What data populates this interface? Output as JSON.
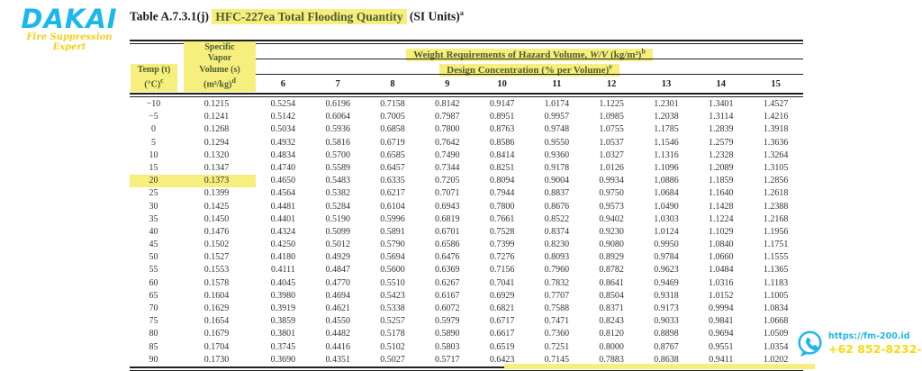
{
  "logo": {
    "name": "DAKAI",
    "tagline": "Fire Suppression Expert"
  },
  "title": {
    "label": "Table A.7.3.1(j)",
    "highlighted": "HFC-227ea Total Flooding Quantity",
    "units": "(SI Units)",
    "footnote": "a"
  },
  "contact": {
    "icon": "whatsapp-phone-icon",
    "url": "https://fm-200.id",
    "phone": "+62 852-8232-8117"
  },
  "colors": {
    "highlight": "#f6ef7d",
    "header_green": "#4f5c33",
    "logo_cyan": "#1db8ea",
    "logo_yellow": "#f2cf1d",
    "contact_cyan": "#22b7ea",
    "contact_yellow": "#f8da13"
  },
  "table": {
    "weight_header": {
      "text": "Weight Requirements of Hazard Volume, ",
      "formula": "W/V",
      "unit": " (kg/m³)",
      "footnote": "b"
    },
    "concentration_header": {
      "text": "Design Concentration (% per Volume)",
      "footnote": "e"
    },
    "temp_header": {
      "line1": "Temp (t)",
      "line2": "(°C)",
      "footnote": "c"
    },
    "vapor_header": {
      "line1": "Specific",
      "line2": "Vapor",
      "line3": "Volume (s)",
      "line4": "(m³/kg)",
      "footnote": "d"
    },
    "concentrations": [
      "6",
      "7",
      "8",
      "9",
      "10",
      "11",
      "12",
      "13",
      "14",
      "15"
    ],
    "rows": [
      {
        "temp": "−10",
        "s": "0.1215",
        "values": [
          "0.5254",
          "0.6196",
          "0.7158",
          "0.8142",
          "0.9147",
          "1.0174",
          "1.1225",
          "1.2301",
          "1.3401",
          "1.4527"
        ]
      },
      {
        "temp": "−5",
        "s": "0.1241",
        "values": [
          "0.5142",
          "0.6064",
          "0.7005",
          "0.7987",
          "0.8951",
          "0.9957",
          "1.0985",
          "1.2038",
          "1.3114",
          "1.4216"
        ]
      },
      {
        "temp": "0",
        "s": "0.1268",
        "values": [
          "0.5034",
          "0.5936",
          "0.6858",
          "0.7800",
          "0.8763",
          "0.9748",
          "1.0755",
          "1.1785",
          "1.2839",
          "1.3918"
        ]
      },
      {
        "temp": "5",
        "s": "0.1294",
        "values": [
          "0.4932",
          "0.5816",
          "0.6719",
          "0.7642",
          "0.8586",
          "0.9550",
          "1.0537",
          "1.1546",
          "1.2579",
          "1.3636"
        ]
      },
      {
        "temp": "10",
        "s": "0.1320",
        "values": [
          "0.4834",
          "0.5700",
          "0.6585",
          "0.7490",
          "0.8414",
          "0.9360",
          "1.0327",
          "1.1316",
          "1.2328",
          "1.3264"
        ]
      },
      {
        "temp": "15",
        "s": "0.1347",
        "values": [
          "0.4740",
          "0.5589",
          "0.6457",
          "0.7344",
          "0.8251",
          "0.9178",
          "1.0126",
          "1.1096",
          "1.2089",
          "1.3105"
        ]
      },
      {
        "temp": "20",
        "s": "0.1373",
        "highlight": true,
        "values": [
          "0.4650",
          "0.5483",
          "0.6335",
          "0.7205",
          "0.8094",
          "0.9004",
          "0.9934",
          "1.0886",
          "1.1859",
          "1.2856"
        ]
      },
      {
        "temp": "25",
        "s": "0.1399",
        "values": [
          "0.4564",
          "0.5382",
          "0.6217",
          "0.7071",
          "0.7944",
          "0.8837",
          "0.9750",
          "1.0684",
          "1.1640",
          "1.2618"
        ]
      },
      {
        "temp": "30",
        "s": "0.1425",
        "values": [
          "0.4481",
          "0.5284",
          "0.6104",
          "0.6943",
          "0.7800",
          "0.8676",
          "0.9573",
          "1.0490",
          "1.1428",
          "1.2388"
        ]
      },
      {
        "temp": "35",
        "s": "0.1450",
        "values": [
          "0.4401",
          "0.5190",
          "0.5996",
          "0.6819",
          "0.7661",
          "0.8522",
          "0.9402",
          "1.0303",
          "1.1224",
          "1.2168"
        ]
      },
      {
        "temp": "40",
        "s": "0.1476",
        "values": [
          "0.4324",
          "0.5099",
          "0.5891",
          "0.6701",
          "0.7528",
          "0.8374",
          "0.9230",
          "1.0124",
          "1.1029",
          "1.1956"
        ]
      },
      {
        "temp": "45",
        "s": "0.1502",
        "values": [
          "0.4250",
          "0.5012",
          "0.5790",
          "0.6586",
          "0.7399",
          "0.8230",
          "0.9080",
          "0.9950",
          "1.0840",
          "1.1751"
        ]
      },
      {
        "temp": "50",
        "s": "0.1527",
        "values": [
          "0.4180",
          "0.4929",
          "0.5694",
          "0.6476",
          "0.7276",
          "0.8093",
          "0.8929",
          "0.9784",
          "1.0660",
          "1.1555"
        ]
      },
      {
        "temp": "55",
        "s": "0.1553",
        "values": [
          "0.4111",
          "0.4847",
          "0.5600",
          "0.6369",
          "0.7156",
          "0.7960",
          "0.8782",
          "0.9623",
          "1.0484",
          "1.1365"
        ]
      },
      {
        "temp": "60",
        "s": "0.1578",
        "values": [
          "0.4045",
          "0.4770",
          "0.5510",
          "0.6267",
          "0.7041",
          "0.7832",
          "0.8641",
          "0.9469",
          "1.0316",
          "1.1183"
        ]
      },
      {
        "temp": "65",
        "s": "0.1604",
        "values": [
          "0.3980",
          "0.4694",
          "0.5423",
          "0.6167",
          "0.6929",
          "0.7707",
          "0.8504",
          "0.9318",
          "1.0152",
          "1.1005"
        ]
      },
      {
        "temp": "70",
        "s": "0.1629",
        "values": [
          "0.3919",
          "0.4621",
          "0.5338",
          "0.6072",
          "0.6821",
          "0.7588",
          "0.8371",
          "0.9173",
          "0.9994",
          "1.0834"
        ]
      },
      {
        "temp": "75",
        "s": "0.1654",
        "values": [
          "0.3859",
          "0.4550",
          "0.5257",
          "0.5979",
          "0.6717",
          "0.7471",
          "0.8243",
          "0.9033",
          "0.9841",
          "1.0668"
        ]
      },
      {
        "temp": "80",
        "s": "0.1679",
        "values": [
          "0.3801",
          "0.4482",
          "0.5178",
          "0.5890",
          "0.6617",
          "0.7360",
          "0.8120",
          "0.8898",
          "0.9694",
          "1.0509"
        ]
      },
      {
        "temp": "85",
        "s": "0.1704",
        "values": [
          "0.3745",
          "0.4416",
          "0.5102",
          "0.5803",
          "0.6519",
          "0.7251",
          "0.8000",
          "0.8767",
          "0.9551",
          "1.0354"
        ]
      },
      {
        "temp": "90",
        "s": "0.1730",
        "values": [
          "0.3690",
          "0.4351",
          "0.5027",
          "0.5717",
          "0.6423",
          "0.7145",
          "0.7883",
          "0.8638",
          "0.9411",
          "1.0202"
        ]
      }
    ]
  }
}
